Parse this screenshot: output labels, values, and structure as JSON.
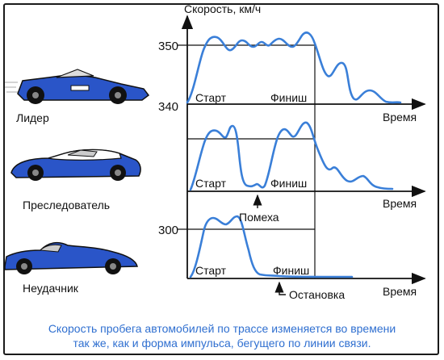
{
  "y_axis_label": "Скорость, км/ч",
  "x_axis_label": "Время",
  "ticks": {
    "t350": "350",
    "t340": "340",
    "t300": "300"
  },
  "marks": {
    "start": "Старт",
    "finish": "Финиш"
  },
  "events": {
    "obstacle": "Помеха",
    "stop": "Остановка"
  },
  "cars": {
    "leader": "Лидер",
    "pursuer": "Преследователь",
    "loser": "Неудачник"
  },
  "caption": {
    "line1": "Скорость пробега автомобилей по трассе изменяется во времени",
    "line2": "так же, как и форма импульса, бегущего по линии связи."
  },
  "colors": {
    "curve": "#3a7fd8",
    "car_blue": "#2a55c8",
    "caption": "#2f6fd0"
  }
}
